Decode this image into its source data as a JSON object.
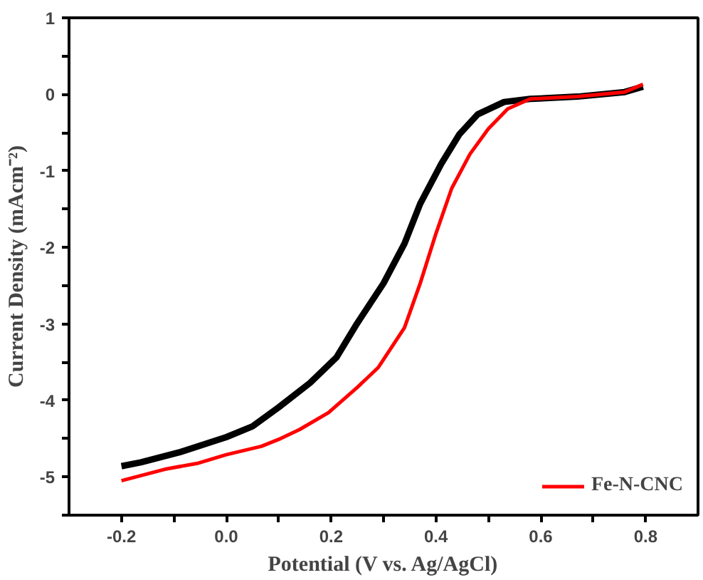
{
  "chart_data": {
    "type": "line",
    "xlabel": "Potential (V vs. Ag/AgCl)",
    "ylabel": "Current Density (mAcm⁻²)",
    "xlim": [
      -0.3,
      0.9
    ],
    "ylim": [
      -5.5,
      1
    ],
    "xticks": [
      -0.2,
      {
        "value": -0.1,
        "label": null
      },
      {
        "value": 0.0,
        "label": "0.0"
      },
      {
        "value": 0.1,
        "label": null
      },
      0.2,
      {
        "value": 0.3,
        "label": null
      },
      0.4,
      {
        "value": 0.5,
        "label": null
      },
      0.6,
      {
        "value": 0.7,
        "label": null
      },
      0.8
    ],
    "yticks": [
      {
        "value": -5.5,
        "label": null
      },
      -5,
      {
        "value": -4.5,
        "label": null
      },
      -4,
      {
        "value": -3.5,
        "label": null
      },
      -3,
      {
        "value": -2.5,
        "label": null
      },
      -2,
      {
        "value": -1.5,
        "label": null
      },
      -1,
      {
        "value": -0.5,
        "label": null
      },
      0,
      {
        "value": 0.5,
        "label": null
      },
      1
    ],
    "grid": false,
    "legend": "bottom right",
    "marker": "none",
    "line_style": "solid",
    "series": [
      {
        "color": "#000000",
        "x": [
          -0.2,
          -0.163,
          -0.09,
          0.0,
          0.05,
          0.1,
          0.16,
          0.21,
          0.25,
          0.3,
          0.34,
          0.37,
          0.41,
          0.445,
          0.48,
          0.53,
          0.58,
          0.67,
          0.76,
          0.795
        ],
        "values": [
          -4.86,
          -4.81,
          -4.68,
          -4.48,
          -4.34,
          -4.09,
          -3.77,
          -3.44,
          -2.99,
          -2.47,
          -1.95,
          -1.43,
          -0.91,
          -0.52,
          -0.26,
          -0.1,
          -0.06,
          -0.03,
          0.03,
          0.1
        ]
      },
      {
        "name": "Fe-N-CNC",
        "color": "#ff0000",
        "x": [
          -0.2,
          -0.117,
          -0.053,
          0.0,
          0.067,
          0.1,
          0.14,
          0.195,
          0.25,
          0.29,
          0.34,
          0.37,
          0.4,
          0.43,
          0.465,
          0.5,
          0.537,
          0.58,
          0.67,
          0.76,
          0.795
        ],
        "values": [
          -5.05,
          -4.9,
          -4.82,
          -4.71,
          -4.6,
          -4.51,
          -4.38,
          -4.16,
          -3.83,
          -3.57,
          -3.05,
          -2.47,
          -1.82,
          -1.23,
          -0.78,
          -0.45,
          -0.19,
          -0.06,
          -0.03,
          0.03,
          0.13
        ]
      }
    ]
  }
}
